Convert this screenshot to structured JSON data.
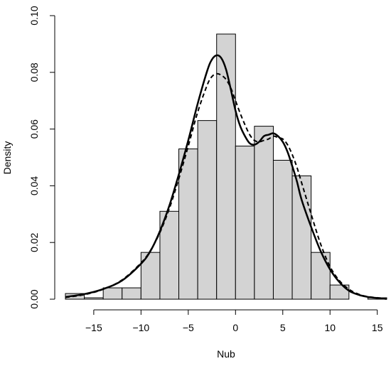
{
  "chart_data": {
    "type": "histogram",
    "title": "",
    "xlabel": "Nub",
    "ylabel": "Density",
    "xlim": [
      -18,
      16
    ],
    "ylim": [
      0,
      0.1
    ],
    "x_ticks": [
      -15,
      -10,
      -5,
      0,
      5,
      10,
      15
    ],
    "y_ticks": [
      0.0,
      0.02,
      0.04,
      0.06,
      0.08,
      0.1
    ],
    "x_tick_labels": [
      "−15",
      "−10",
      "−5",
      "0",
      "5",
      "10",
      "15"
    ],
    "y_tick_labels": [
      "0.00",
      "0.02",
      "0.04",
      "0.06",
      "0.08",
      "0.10"
    ],
    "bin_width": 2,
    "bins": [
      {
        "x0": -18,
        "x1": -16,
        "density": 0.002
      },
      {
        "x0": -16,
        "x1": -14,
        "density": 0.0005
      },
      {
        "x0": -14,
        "x1": -12,
        "density": 0.004
      },
      {
        "x0": -12,
        "x1": -10,
        "density": 0.004
      },
      {
        "x0": -10,
        "x1": -8,
        "density": 0.0165
      },
      {
        "x0": -8,
        "x1": -6,
        "density": 0.031
      },
      {
        "x0": -6,
        "x1": -4,
        "density": 0.053
      },
      {
        "x0": -4,
        "x1": -2,
        "density": 0.063
      },
      {
        "x0": -2,
        "x1": 0,
        "density": 0.0935
      },
      {
        "x0": 0,
        "x1": 2,
        "density": 0.054
      },
      {
        "x0": 2,
        "x1": 4,
        "density": 0.061
      },
      {
        "x0": 4,
        "x1": 6,
        "density": 0.049
      },
      {
        "x0": 6,
        "x1": 8,
        "density": 0.0435
      },
      {
        "x0": 8,
        "x1": 10,
        "density": 0.0165
      },
      {
        "x0": 10,
        "x1": 12,
        "density": 0.005
      },
      {
        "x0": 12,
        "x1": 14,
        "density": 0
      },
      {
        "x0": 14,
        "x1": 16,
        "density": 0.0005
      }
    ],
    "series": [
      {
        "style": "solid",
        "x": [
          -18,
          -16,
          -14,
          -12,
          -10,
          -9,
          -8,
          -7,
          -6,
          -5,
          -4,
          -3,
          -2.5,
          -2,
          -1.5,
          -1,
          -0.5,
          0,
          0.5,
          1,
          1.5,
          2,
          2.5,
          3,
          3.5,
          4,
          4.5,
          5,
          5.5,
          6,
          6.5,
          7,
          8,
          9,
          10,
          11,
          12,
          13,
          14,
          16
        ],
        "y": [
          0.0008,
          0.0018,
          0.0036,
          0.0066,
          0.0125,
          0.017,
          0.024,
          0.033,
          0.044,
          0.056,
          0.069,
          0.0805,
          0.0845,
          0.086,
          0.085,
          0.081,
          0.074,
          0.0665,
          0.061,
          0.0575,
          0.055,
          0.0545,
          0.0555,
          0.0575,
          0.058,
          0.0585,
          0.0575,
          0.0555,
          0.052,
          0.047,
          0.0415,
          0.035,
          0.0255,
          0.017,
          0.0105,
          0.006,
          0.003,
          0.0016,
          0.0008,
          0.0001
        ]
      },
      {
        "style": "dashed",
        "x": [
          -18,
          -16,
          -14,
          -12,
          -10,
          -9,
          -8,
          -7,
          -6,
          -5,
          -4,
          -3,
          -2.5,
          -2,
          -1.5,
          -1,
          -0.5,
          0,
          0.5,
          1,
          1.5,
          2,
          2.5,
          3,
          3.5,
          4,
          4.5,
          5,
          5.5,
          6,
          6.5,
          7,
          8,
          9,
          10,
          11,
          12,
          13,
          14,
          16
        ],
        "y": [
          0.0006,
          0.0016,
          0.0035,
          0.0068,
          0.0128,
          0.0172,
          0.0235,
          0.032,
          0.0425,
          0.054,
          0.066,
          0.0755,
          0.0785,
          0.0795,
          0.079,
          0.0775,
          0.0745,
          0.07,
          0.0655,
          0.0615,
          0.058,
          0.056,
          0.0555,
          0.056,
          0.0565,
          0.0575,
          0.057,
          0.0565,
          0.0545,
          0.051,
          0.0465,
          0.041,
          0.03,
          0.0195,
          0.0115,
          0.0065,
          0.0035,
          0.0018,
          0.0009,
          0.0002
        ]
      }
    ]
  }
}
